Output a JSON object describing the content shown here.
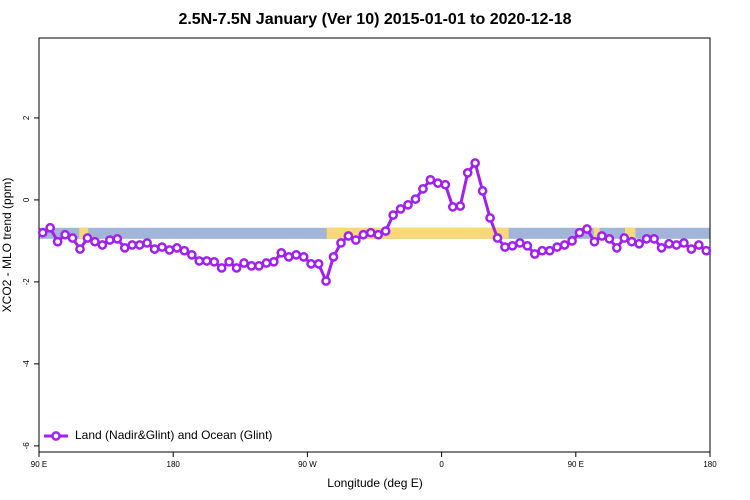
{
  "chart_data": {
    "type": "line",
    "title": "2.5N-7.5N January (Ver 10)   2015-01-01 to 2020-12-18",
    "x_label": "Longitude (deg E)",
    "y_label": "XCO2 - MLO trend (ppm)",
    "x": [
      92.5,
      97.5,
      102.5,
      107.5,
      112.5,
      117.5,
      122.5,
      127.5,
      132.5,
      137.5,
      142.5,
      147.5,
      152.5,
      157.5,
      162.5,
      167.5,
      172.5,
      177.5,
      182.5,
      187.5,
      192.5,
      197.5,
      202.5,
      207.5,
      212.5,
      217.5,
      222.5,
      227.5,
      232.5,
      237.5,
      242.5,
      247.5,
      252.5,
      257.5,
      262.5,
      267.5,
      272.5,
      277.5,
      282.5,
      287.5,
      292.5,
      297.5,
      302.5,
      307.5,
      312.5,
      317.5,
      322.5,
      327.5,
      332.5,
      337.5,
      342.5,
      347.5,
      352.5,
      357.5,
      362.5,
      367.5,
      372.5,
      377.5,
      382.5,
      387.5,
      392.5,
      397.5,
      402.5,
      407.5,
      412.5,
      417.5,
      422.5,
      427.5,
      432.5,
      437.5,
      442.5,
      447.5,
      452.5,
      457.5,
      462.5,
      467.5,
      472.5,
      477.5,
      482.5,
      487.5,
      492.5,
      497.5,
      502.5,
      507.5,
      512.5,
      517.5,
      522.5,
      527.5,
      532.5,
      537.5
    ],
    "series": [
      {
        "name": "Land (Nadir&Glint) and Ocean (Glint)",
        "color": "#a020f0",
        "values": [
          -0.8,
          -0.68,
          -1.02,
          -0.85,
          -0.93,
          -1.2,
          -0.93,
          -1.02,
          -1.1,
          -0.98,
          -0.95,
          -1.17,
          -1.1,
          -1.1,
          -1.05,
          -1.2,
          -1.15,
          -1.22,
          -1.17,
          -1.24,
          -1.34,
          -1.49,
          -1.49,
          -1.51,
          -1.66,
          -1.51,
          -1.66,
          -1.54,
          -1.61,
          -1.61,
          -1.54,
          -1.51,
          -1.29,
          -1.39,
          -1.34,
          -1.39,
          -1.56,
          -1.56,
          -1.98,
          -1.39,
          -1.05,
          -0.88,
          -0.98,
          -0.85,
          -0.8,
          -0.85,
          -0.76,
          -0.37,
          -0.22,
          -0.12,
          0.02,
          0.27,
          0.49,
          0.41,
          0.37,
          -0.17,
          -0.15,
          0.66,
          0.9,
          0.22,
          -0.44,
          -0.93,
          -1.15,
          -1.12,
          -1.05,
          -1.12,
          -1.32,
          -1.24,
          -1.24,
          -1.15,
          -1.1,
          -1.0,
          -0.8,
          -0.71,
          -1.02,
          -0.88,
          -0.95,
          -1.17,
          -0.93,
          -1.02,
          -1.07,
          -0.95,
          -0.95,
          -1.17,
          -1.07,
          -1.1,
          -1.05,
          -1.2,
          -1.1,
          -1.24
        ]
      }
    ],
    "band": {
      "lower": -0.95,
      "upper": -0.68,
      "ocean_color": "#a2b5d8",
      "land_color": "#f8d878",
      "land_ranges": [
        [
          117,
          123
        ],
        [
          283,
          405
        ],
        [
          462,
          466
        ],
        [
          483,
          490
        ]
      ]
    },
    "xlim": [
      90,
      540
    ],
    "ylim": [
      -6.15,
      3.95
    ],
    "xticks": [
      {
        "value": 90,
        "label": "90 E"
      },
      180,
      {
        "value": 270,
        "label": "90 W"
      },
      {
        "value": 360,
        "label": "0"
      },
      {
        "value": 450,
        "label": "90 E"
      },
      {
        "value": 540,
        "label": "180"
      }
    ],
    "yticks": [
      -6,
      -4,
      -2,
      0,
      2
    ],
    "legend": "bottom-left"
  }
}
